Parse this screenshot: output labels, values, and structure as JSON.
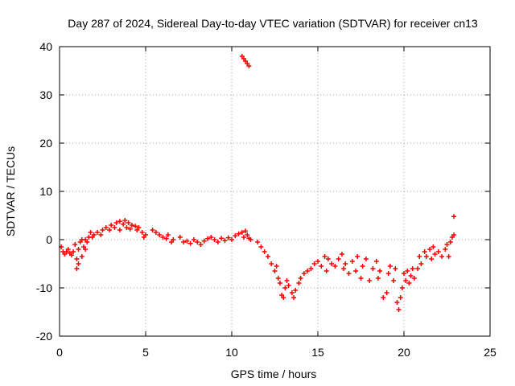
{
  "chart_data": {
    "type": "scatter",
    "title": "Day 287 of 2024, Sidereal Day-to-day VTEC variation (SDTVAR) for receiver cn13",
    "xlabel": "GPS time / hours",
    "ylabel": "SDTVAR / TECUs",
    "xlim": [
      0,
      25
    ],
    "ylim": [
      -20,
      40
    ],
    "xticks": [
      0,
      5,
      10,
      15,
      20,
      25
    ],
    "yticks": [
      -20,
      -10,
      0,
      10,
      20,
      30,
      40
    ],
    "xtick_labels": [
      "0",
      "5",
      "10",
      "15",
      "20",
      "25"
    ],
    "ytick_labels": [
      "-20",
      "-10",
      "0",
      "10",
      "20",
      "30",
      "40"
    ],
    "grid": true,
    "marker": "+",
    "color": "#ff0000",
    "series": [
      {
        "name": "SDTVAR",
        "points": [
          [
            0.1,
            -1.5
          ],
          [
            0.2,
            -2.5
          ],
          [
            0.3,
            -3.0
          ],
          [
            0.4,
            -2.5
          ],
          [
            0.5,
            -2.0
          ],
          [
            0.6,
            -2.8
          ],
          [
            0.7,
            -3.2
          ],
          [
            0.8,
            -2.5
          ],
          [
            0.9,
            -1.0
          ],
          [
            1.0,
            -4.0
          ],
          [
            1.0,
            -6.0
          ],
          [
            1.1,
            -5.0
          ],
          [
            1.1,
            -2.0
          ],
          [
            1.2,
            -0.5
          ],
          [
            1.3,
            -3.5
          ],
          [
            1.3,
            0.0
          ],
          [
            1.4,
            -1.5
          ],
          [
            1.5,
            0.0
          ],
          [
            1.5,
            -2.0
          ],
          [
            1.6,
            -0.5
          ],
          [
            1.7,
            0.5
          ],
          [
            1.8,
            1.5
          ],
          [
            1.9,
            0.5
          ],
          [
            2.0,
            1.0
          ],
          [
            2.2,
            1.5
          ],
          [
            2.4,
            1.0
          ],
          [
            2.5,
            2.0
          ],
          [
            2.7,
            2.5
          ],
          [
            2.9,
            2.0
          ],
          [
            3.0,
            3.0
          ],
          [
            3.2,
            2.5
          ],
          [
            3.3,
            3.5
          ],
          [
            3.5,
            3.8
          ],
          [
            3.5,
            2.0
          ],
          [
            3.7,
            3.2
          ],
          [
            3.8,
            4.0
          ],
          [
            3.9,
            2.5
          ],
          [
            4.0,
            3.5
          ],
          [
            4.1,
            2.2
          ],
          [
            4.2,
            3.0
          ],
          [
            4.4,
            2.8
          ],
          [
            4.5,
            2.0
          ],
          [
            4.6,
            2.5
          ],
          [
            4.8,
            1.5
          ],
          [
            4.9,
            0.5
          ],
          [
            5.0,
            1.0
          ],
          [
            5.4,
            2.0
          ],
          [
            5.6,
            1.5
          ],
          [
            5.8,
            1.0
          ],
          [
            6.0,
            0.5
          ],
          [
            6.2,
            0.2
          ],
          [
            6.3,
            1.0
          ],
          [
            6.5,
            -0.5
          ],
          [
            6.6,
            0.0
          ],
          [
            7.0,
            0.5
          ],
          [
            7.2,
            -0.5
          ],
          [
            7.4,
            -0.3
          ],
          [
            7.6,
            -0.8
          ],
          [
            7.8,
            0.0
          ],
          [
            8.0,
            -0.5
          ],
          [
            8.2,
            -1.0
          ],
          [
            8.4,
            -0.3
          ],
          [
            8.6,
            0.2
          ],
          [
            8.8,
            0.5
          ],
          [
            9.0,
            0.0
          ],
          [
            9.2,
            -0.5
          ],
          [
            9.4,
            0.3
          ],
          [
            9.6,
            -0.2
          ],
          [
            9.8,
            0.4
          ],
          [
            10.0,
            0.0
          ],
          [
            10.2,
            0.8
          ],
          [
            10.4,
            1.2
          ],
          [
            10.6,
            1.5
          ],
          [
            10.7,
            0.5
          ],
          [
            10.8,
            1.8
          ],
          [
            10.9,
            1.0
          ],
          [
            11.0,
            0.3
          ],
          [
            11.1,
            0.0
          ],
          [
            10.6,
            38.0
          ],
          [
            10.7,
            37.5
          ],
          [
            10.8,
            37.0
          ],
          [
            10.9,
            36.5
          ],
          [
            11.0,
            36.0
          ],
          [
            11.5,
            -0.5
          ],
          [
            11.7,
            -1.5
          ],
          [
            11.9,
            -2.5
          ],
          [
            12.1,
            -3.5
          ],
          [
            12.3,
            -5.0
          ],
          [
            12.5,
            -6.5
          ],
          [
            12.6,
            -5.5
          ],
          [
            12.7,
            -8.0
          ],
          [
            12.8,
            -9.0
          ],
          [
            12.9,
            -11.5
          ],
          [
            13.0,
            -12.0
          ],
          [
            13.1,
            -10.0
          ],
          [
            13.2,
            -8.5
          ],
          [
            13.3,
            -9.5
          ],
          [
            13.5,
            -11.0
          ],
          [
            13.6,
            -12.0
          ],
          [
            13.7,
            -10.5
          ],
          [
            13.9,
            -9.0
          ],
          [
            14.0,
            -8.0
          ],
          [
            14.2,
            -7.0
          ],
          [
            14.4,
            -6.5
          ],
          [
            14.6,
            -6.0
          ],
          [
            14.8,
            -5.0
          ],
          [
            15.0,
            -4.5
          ],
          [
            15.2,
            -5.5
          ],
          [
            15.4,
            -3.5
          ],
          [
            15.5,
            -6.5
          ],
          [
            15.6,
            -4.0
          ],
          [
            15.8,
            -5.0
          ],
          [
            16.0,
            -5.5
          ],
          [
            16.2,
            -4.0
          ],
          [
            16.4,
            -3.0
          ],
          [
            16.5,
            -6.0
          ],
          [
            16.6,
            -5.0
          ],
          [
            16.8,
            -7.0
          ],
          [
            17.0,
            -4.5
          ],
          [
            17.2,
            -6.5
          ],
          [
            17.3,
            -3.5
          ],
          [
            17.5,
            -8.0
          ],
          [
            17.6,
            -5.5
          ],
          [
            17.8,
            -4.0
          ],
          [
            18.0,
            -8.5
          ],
          [
            18.2,
            -6.0
          ],
          [
            18.4,
            -4.5
          ],
          [
            18.5,
            -8.0
          ],
          [
            18.6,
            -6.5
          ],
          [
            18.8,
            -12.0
          ],
          [
            19.0,
            -11.0
          ],
          [
            19.1,
            -7.0
          ],
          [
            19.2,
            -5.5
          ],
          [
            19.4,
            -8.5
          ],
          [
            19.5,
            -6.0
          ],
          [
            19.6,
            -13.0
          ],
          [
            19.7,
            -14.5
          ],
          [
            19.8,
            -12.0
          ],
          [
            19.9,
            -10.0
          ],
          [
            20.0,
            -7.0
          ],
          [
            20.1,
            -8.5
          ],
          [
            20.2,
            -6.5
          ],
          [
            20.3,
            -9.0
          ],
          [
            20.4,
            -7.5
          ],
          [
            20.5,
            -6.0
          ],
          [
            20.6,
            -8.0
          ],
          [
            20.8,
            -6.0
          ],
          [
            20.9,
            -3.5
          ],
          [
            21.0,
            -5.0
          ],
          [
            21.2,
            -2.5
          ],
          [
            21.3,
            -3.5
          ],
          [
            21.5,
            -2.0
          ],
          [
            21.6,
            -4.0
          ],
          [
            21.7,
            -1.5
          ],
          [
            21.8,
            -3.0
          ],
          [
            22.0,
            -2.5
          ],
          [
            22.2,
            -3.5
          ],
          [
            22.4,
            -2.0
          ],
          [
            22.5,
            -1.0
          ],
          [
            22.6,
            -3.5
          ],
          [
            22.7,
            -0.5
          ],
          [
            22.8,
            0.5
          ],
          [
            22.9,
            1.0
          ],
          [
            22.9,
            4.8
          ]
        ]
      }
    ]
  }
}
